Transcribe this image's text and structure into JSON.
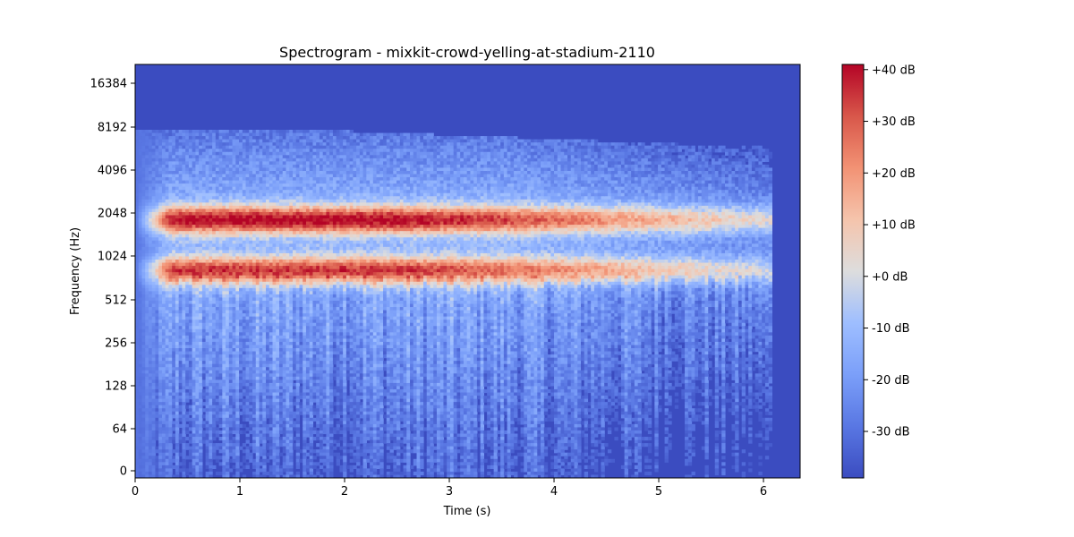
{
  "chart_data": {
    "type": "heatmap",
    "title": "Spectrogram - mixkit-crowd-yelling-at-stadium-2110",
    "xlabel": "Time (s)",
    "ylabel": "Frequency (Hz)",
    "x_ticks": [
      0,
      1,
      2,
      3,
      4,
      5,
      6
    ],
    "xlim": [
      0,
      6.35
    ],
    "y_scale": "log (symlog)",
    "y_tick_labels": [
      "0",
      "64",
      "128",
      "256",
      "512",
      "1024",
      "2048",
      "4096",
      "8192",
      "16384"
    ],
    "colorbar": {
      "label_format": "dB",
      "tick_labels": [
        "+40 dB",
        "+30 dB",
        "+20 dB",
        "+10 dB",
        "+0 dB",
        "-10 dB",
        "-20 dB",
        "-30 dB"
      ],
      "tick_values": [
        40,
        30,
        20,
        10,
        0,
        -10,
        -20,
        -30
      ],
      "range": [
        -39,
        41
      ],
      "colormap": "coolwarm"
    },
    "signal_end_time": 6.08,
    "grid": false,
    "intensity_bands": [
      {
        "frequency_hz": 1800,
        "peak_db": 38,
        "note": "strongest band"
      },
      {
        "frequency_hz": 800,
        "peak_db": 32,
        "note": "second band"
      }
    ]
  },
  "colors": {
    "background_min": "#3b4cc0",
    "low": "#6f92f3",
    "neutral": "#dddddd",
    "high": "#e7745b",
    "max": "#b40426"
  }
}
